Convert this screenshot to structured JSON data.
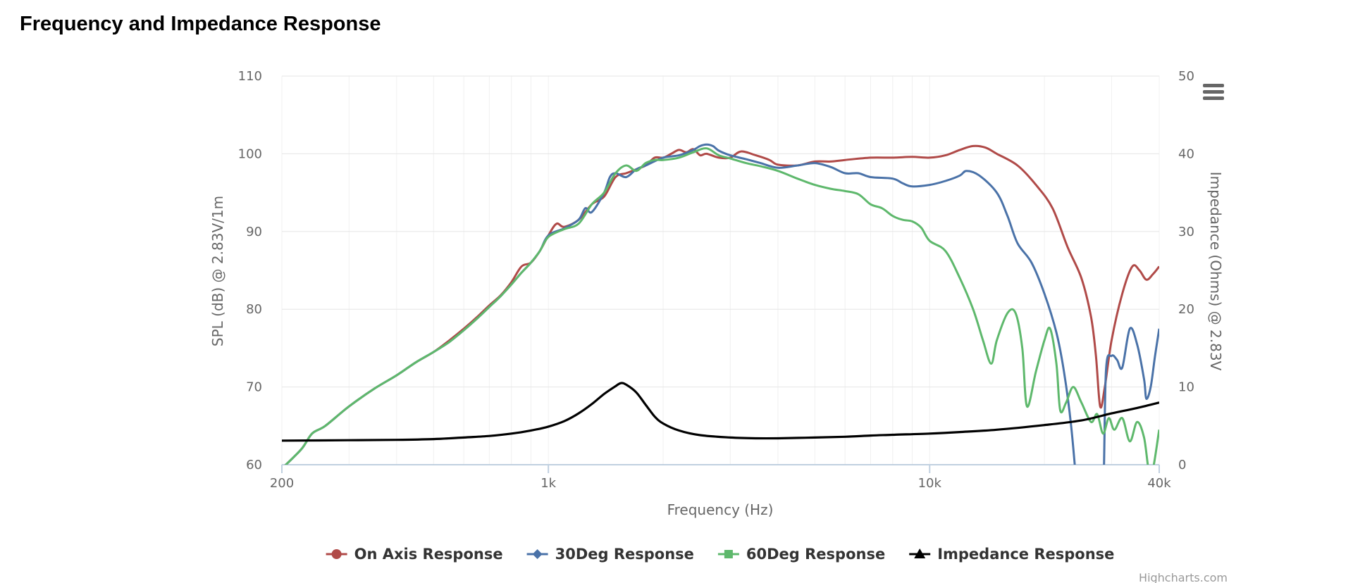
{
  "page": {
    "title": "Frequency and Impedance Response"
  },
  "menu": {
    "icon": "hamburger-menu-icon"
  },
  "credits": "Highcharts.com",
  "chart_data": {
    "type": "line",
    "title": "",
    "x_axis": {
      "label": "Frequency (Hz)",
      "scale": "log",
      "range": [
        200,
        40000
      ],
      "ticks": [
        {
          "value": 200,
          "label": "200"
        },
        {
          "value": 1000,
          "label": "1k"
        },
        {
          "value": 10000,
          "label": "10k"
        },
        {
          "value": 40000,
          "label": "40k"
        }
      ]
    },
    "y_axis_left": {
      "label": "SPL (dB) @ 2.83V/1m",
      "range": [
        60,
        110
      ],
      "ticks": [
        60,
        70,
        80,
        90,
        100,
        110
      ]
    },
    "y_axis_right": {
      "label": "Impedance (Ohms) @ 2.83V",
      "range": [
        0,
        50
      ],
      "ticks": [
        0,
        10,
        20,
        30,
        40,
        50
      ]
    },
    "grid": true,
    "legend_position": "bottom-center",
    "series": [
      {
        "name": "On Axis Response",
        "axis": "left",
        "color": "#b04a48",
        "marker": "circle",
        "points": [
          [
            200,
            59.5
          ],
          [
            225,
            62
          ],
          [
            240,
            64
          ],
          [
            260,
            65
          ],
          [
            300,
            67.5
          ],
          [
            350,
            69.8
          ],
          [
            400,
            71.5
          ],
          [
            450,
            73.2
          ],
          [
            500,
            74.5
          ],
          [
            550,
            76
          ],
          [
            600,
            77.5
          ],
          [
            650,
            79
          ],
          [
            700,
            80.5
          ],
          [
            750,
            81.8
          ],
          [
            800,
            83.5
          ],
          [
            850,
            85.5
          ],
          [
            900,
            86
          ],
          [
            950,
            87.5
          ],
          [
            1000,
            89.5
          ],
          [
            1050,
            91
          ],
          [
            1100,
            90.6
          ],
          [
            1200,
            91.5
          ],
          [
            1300,
            93.5
          ],
          [
            1400,
            94.5
          ],
          [
            1500,
            97
          ],
          [
            1600,
            97.5
          ],
          [
            1700,
            98
          ],
          [
            1800,
            98.5
          ],
          [
            1900,
            99.5
          ],
          [
            2000,
            99.5
          ],
          [
            2100,
            100
          ],
          [
            2200,
            100.5
          ],
          [
            2300,
            100.2
          ],
          [
            2400,
            100.6
          ],
          [
            2500,
            99.8
          ],
          [
            2600,
            100
          ],
          [
            2800,
            99.5
          ],
          [
            3000,
            99.5
          ],
          [
            3200,
            100.3
          ],
          [
            3500,
            99.8
          ],
          [
            3800,
            99.2
          ],
          [
            4000,
            98.6
          ],
          [
            4500,
            98.5
          ],
          [
            5000,
            99
          ],
          [
            5500,
            99
          ],
          [
            6000,
            99.2
          ],
          [
            7000,
            99.5
          ],
          [
            8000,
            99.5
          ],
          [
            9000,
            99.6
          ],
          [
            10000,
            99.5
          ],
          [
            11000,
            99.8
          ],
          [
            12000,
            100.5
          ],
          [
            13000,
            101
          ],
          [
            14000,
            100.8
          ],
          [
            15000,
            100
          ],
          [
            17000,
            98.5
          ],
          [
            19000,
            96
          ],
          [
            21000,
            93
          ],
          [
            23000,
            88
          ],
          [
            25000,
            84
          ],
          [
            26500,
            79
          ],
          [
            27300,
            74
          ],
          [
            28000,
            67.5
          ],
          [
            28800,
            70
          ],
          [
            30000,
            76
          ],
          [
            32000,
            82
          ],
          [
            34000,
            85.5
          ],
          [
            35500,
            85
          ],
          [
            37000,
            83.8
          ],
          [
            38500,
            84.5
          ],
          [
            40000,
            85.5
          ]
        ]
      },
      {
        "name": "30Deg Response",
        "axis": "left",
        "color": "#4a72a8",
        "marker": "diamond",
        "points": [
          [
            200,
            59.5
          ],
          [
            225,
            62
          ],
          [
            240,
            64
          ],
          [
            260,
            65
          ],
          [
            300,
            67.5
          ],
          [
            350,
            69.8
          ],
          [
            400,
            71.5
          ],
          [
            450,
            73.2
          ],
          [
            500,
            74.5
          ],
          [
            550,
            75.8
          ],
          [
            600,
            77.3
          ],
          [
            650,
            78.8
          ],
          [
            700,
            80.3
          ],
          [
            750,
            81.7
          ],
          [
            800,
            83.2
          ],
          [
            850,
            84.7
          ],
          [
            900,
            86
          ],
          [
            950,
            87.5
          ],
          [
            1000,
            89.5
          ],
          [
            1100,
            90.4
          ],
          [
            1200,
            91.5
          ],
          [
            1250,
            93
          ],
          [
            1300,
            92.5
          ],
          [
            1400,
            95
          ],
          [
            1450,
            97
          ],
          [
            1500,
            97.5
          ],
          [
            1600,
            97
          ],
          [
            1700,
            98
          ],
          [
            1800,
            98.5
          ],
          [
            2000,
            99.5
          ],
          [
            2200,
            99.8
          ],
          [
            2400,
            100.5
          ],
          [
            2500,
            101
          ],
          [
            2600,
            101.2
          ],
          [
            2700,
            101
          ],
          [
            2800,
            100.4
          ],
          [
            3000,
            99.8
          ],
          [
            3300,
            99.3
          ],
          [
            3600,
            98.8
          ],
          [
            4000,
            98.2
          ],
          [
            4500,
            98.5
          ],
          [
            5000,
            98.8
          ],
          [
            5500,
            98.3
          ],
          [
            6000,
            97.5
          ],
          [
            6500,
            97.5
          ],
          [
            7000,
            97
          ],
          [
            8000,
            96.8
          ],
          [
            8500,
            96.2
          ],
          [
            9000,
            95.8
          ],
          [
            10000,
            96
          ],
          [
            11000,
            96.5
          ],
          [
            12000,
            97.2
          ],
          [
            12500,
            97.8
          ],
          [
            13500,
            97.2
          ],
          [
            15000,
            95
          ],
          [
            16000,
            92
          ],
          [
            17000,
            88.5
          ],
          [
            18500,
            86
          ],
          [
            20000,
            82
          ],
          [
            21500,
            77
          ],
          [
            22500,
            72
          ],
          [
            23500,
            65
          ],
          [
            24500,
            55
          ],
          [
            25500,
            45
          ],
          [
            27500,
            45
          ],
          [
            28500,
            55
          ],
          [
            29000,
            72
          ],
          [
            30000,
            74
          ],
          [
            31000,
            73.5
          ],
          [
            32000,
            72.5
          ],
          [
            33500,
            77.5
          ],
          [
            35000,
            75.5
          ],
          [
            36500,
            71
          ],
          [
            37000,
            68.5
          ],
          [
            38000,
            70
          ],
          [
            39000,
            74
          ],
          [
            40000,
            77.5
          ]
        ]
      },
      {
        "name": "60Deg Response",
        "axis": "left",
        "color": "#5eb86c",
        "marker": "square",
        "points": [
          [
            200,
            59.5
          ],
          [
            225,
            62
          ],
          [
            240,
            64
          ],
          [
            260,
            65
          ],
          [
            300,
            67.5
          ],
          [
            350,
            69.8
          ],
          [
            400,
            71.5
          ],
          [
            450,
            73.2
          ],
          [
            500,
            74.5
          ],
          [
            550,
            75.8
          ],
          [
            600,
            77.3
          ],
          [
            650,
            78.8
          ],
          [
            700,
            80.3
          ],
          [
            750,
            81.7
          ],
          [
            800,
            83.2
          ],
          [
            850,
            84.7
          ],
          [
            900,
            86
          ],
          [
            950,
            87.5
          ],
          [
            1000,
            89.3
          ],
          [
            1100,
            90.3
          ],
          [
            1200,
            91
          ],
          [
            1300,
            93.5
          ],
          [
            1400,
            95
          ],
          [
            1500,
            97.5
          ],
          [
            1600,
            98.5
          ],
          [
            1700,
            97.8
          ],
          [
            1800,
            98.8
          ],
          [
            1900,
            99.2
          ],
          [
            2000,
            99.2
          ],
          [
            2200,
            99.5
          ],
          [
            2400,
            100.2
          ],
          [
            2600,
            100.7
          ],
          [
            2800,
            99.8
          ],
          [
            3000,
            99.4
          ],
          [
            3300,
            98.8
          ],
          [
            3600,
            98.4
          ],
          [
            4000,
            97.8
          ],
          [
            4500,
            96.8
          ],
          [
            5000,
            96
          ],
          [
            5500,
            95.5
          ],
          [
            6000,
            95.2
          ],
          [
            6500,
            94.8
          ],
          [
            7000,
            93.5
          ],
          [
            7500,
            93
          ],
          [
            8000,
            92
          ],
          [
            8500,
            91.5
          ],
          [
            9000,
            91.3
          ],
          [
            9500,
            90.5
          ],
          [
            10000,
            88.8
          ],
          [
            11000,
            87.5
          ],
          [
            12000,
            84
          ],
          [
            13000,
            80
          ],
          [
            13800,
            76
          ],
          [
            14500,
            73
          ],
          [
            15000,
            76
          ],
          [
            16000,
            79.5
          ],
          [
            16800,
            79.5
          ],
          [
            17500,
            75
          ],
          [
            18000,
            67.5
          ],
          [
            19000,
            72
          ],
          [
            20000,
            76
          ],
          [
            20700,
            77.5
          ],
          [
            21500,
            73
          ],
          [
            22000,
            67
          ],
          [
            22800,
            68
          ],
          [
            23800,
            70
          ],
          [
            25000,
            68
          ],
          [
            26500,
            65.5
          ],
          [
            27500,
            66.5
          ],
          [
            28500,
            64
          ],
          [
            29500,
            66
          ],
          [
            30500,
            64.5
          ],
          [
            32000,
            66
          ],
          [
            33500,
            63
          ],
          [
            35000,
            65.5
          ],
          [
            36500,
            63.5
          ],
          [
            38000,
            58.5
          ],
          [
            40000,
            64.5
          ]
        ]
      },
      {
        "name": "Impedance Response",
        "axis": "right",
        "color": "#000000",
        "marker": "triangle",
        "points": [
          [
            200,
            3.1
          ],
          [
            300,
            3.15
          ],
          [
            400,
            3.2
          ],
          [
            500,
            3.3
          ],
          [
            600,
            3.5
          ],
          [
            700,
            3.7
          ],
          [
            800,
            4
          ],
          [
            900,
            4.4
          ],
          [
            1000,
            4.9
          ],
          [
            1100,
            5.6
          ],
          [
            1200,
            6.6
          ],
          [
            1300,
            7.8
          ],
          [
            1400,
            9.1
          ],
          [
            1500,
            10.1
          ],
          [
            1550,
            10.5
          ],
          [
            1600,
            10.3
          ],
          [
            1700,
            9.3
          ],
          [
            1800,
            7.7
          ],
          [
            1900,
            6.2
          ],
          [
            2000,
            5.3
          ],
          [
            2200,
            4.4
          ],
          [
            2500,
            3.8
          ],
          [
            3000,
            3.5
          ],
          [
            3500,
            3.4
          ],
          [
            4000,
            3.4
          ],
          [
            5000,
            3.5
          ],
          [
            6000,
            3.6
          ],
          [
            7000,
            3.75
          ],
          [
            8000,
            3.85
          ],
          [
            10000,
            4
          ],
          [
            12000,
            4.2
          ],
          [
            15000,
            4.5
          ],
          [
            20000,
            5.1
          ],
          [
            25000,
            5.7
          ],
          [
            30000,
            6.6
          ],
          [
            35000,
            7.3
          ],
          [
            40000,
            8
          ]
        ]
      }
    ]
  }
}
